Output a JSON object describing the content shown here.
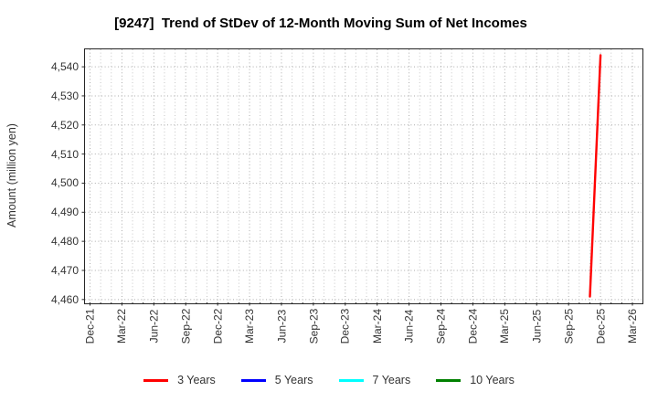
{
  "chart_data": {
    "type": "line",
    "title": "[9247]  Trend of StDev of 12-Month Moving Sum of Net Incomes",
    "xlabel": "",
    "ylabel": "Amount (million yen)",
    "categories": [
      "Dec-21",
      "Mar-22",
      "Jun-22",
      "Sep-22",
      "Dec-22",
      "Mar-23",
      "Jun-23",
      "Sep-23",
      "Dec-23",
      "Mar-24",
      "Jun-24",
      "Sep-24",
      "Dec-24",
      "Mar-25",
      "Jun-25",
      "Sep-25",
      "Dec-25",
      "Mar-26"
    ],
    "ytick_labels": [
      "4,460",
      "4,470",
      "4,480",
      "4,490",
      "4,500",
      "4,510",
      "4,520",
      "4,530",
      "4,540"
    ],
    "ytick_values": [
      4460,
      4470,
      4480,
      4490,
      4500,
      4510,
      4520,
      4530,
      4540
    ],
    "ylim": [
      4459,
      4546
    ],
    "grid": true,
    "grid_style": "dotted",
    "legend_position": "bottom",
    "axis_color": "#262626",
    "series": [
      {
        "name": "3 Years",
        "color": "#ff0000",
        "points": [
          {
            "x": "Nov-25",
            "y": 4461
          },
          {
            "x": "Dec-25",
            "y": 4544
          }
        ]
      },
      {
        "name": "5 Years",
        "color": "#0000ff",
        "points": []
      },
      {
        "name": "7 Years",
        "color": "#00ffff",
        "points": []
      },
      {
        "name": "10 Years",
        "color": "#008000",
        "points": []
      }
    ]
  }
}
